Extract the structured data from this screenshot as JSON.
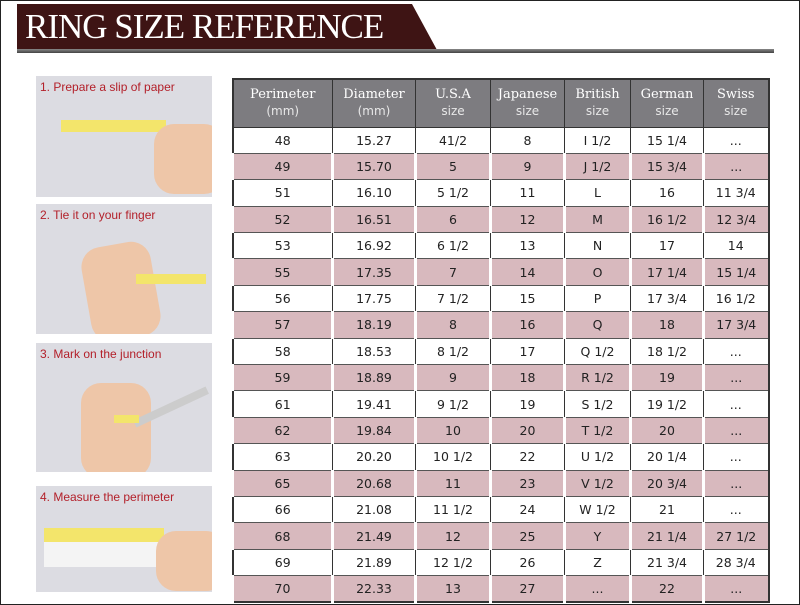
{
  "title": "RING SIZE REFERENCE",
  "steps": [
    {
      "label": "1. Prepare a slip of paper"
    },
    {
      "label": "2. Tie it on your finger"
    },
    {
      "label": "3. Mark on the junction"
    },
    {
      "label": "4. Measure the perimeter"
    }
  ],
  "colors": {
    "banner": "#3e1414",
    "header": "#7d7c80",
    "alt_row": "#d8b9be",
    "step_text": "#b3202a"
  },
  "table": {
    "headers": [
      {
        "title": "Perimeter",
        "sub": "(mm)"
      },
      {
        "title": "Diameter",
        "sub": "(mm)"
      },
      {
        "title": "U.S.A",
        "sub": "size"
      },
      {
        "title": "Japanese",
        "sub": "size"
      },
      {
        "title": "British",
        "sub": "size"
      },
      {
        "title": "German",
        "sub": "size"
      },
      {
        "title": "Swiss",
        "sub": "size"
      }
    ],
    "rows": [
      [
        "48",
        "15.27",
        "41/2",
        "8",
        "I 1/2",
        "15 1/4",
        "..."
      ],
      [
        "49",
        "15.70",
        "5",
        "9",
        "J 1/2",
        "15 3/4",
        "..."
      ],
      [
        "51",
        "16.10",
        "5 1/2",
        "11",
        "L",
        "16",
        "11 3/4"
      ],
      [
        "52",
        "16.51",
        "6",
        "12",
        "M",
        "16 1/2",
        "12 3/4"
      ],
      [
        "53",
        "16.92",
        "6 1/2",
        "13",
        "N",
        "17",
        "14"
      ],
      [
        "55",
        "17.35",
        "7",
        "14",
        "O",
        "17 1/4",
        "15 1/4"
      ],
      [
        "56",
        "17.75",
        "7 1/2",
        "15",
        "P",
        "17 3/4",
        "16 1/2"
      ],
      [
        "57",
        "18.19",
        "8",
        "16",
        "Q",
        "18",
        "17 3/4"
      ],
      [
        "58",
        "18.53",
        "8 1/2",
        "17",
        "Q  1/2",
        "18 1/2",
        "..."
      ],
      [
        "59",
        "18.89",
        "9",
        "18",
        "R 1/2",
        "19",
        "..."
      ],
      [
        "61",
        "19.41",
        "9 1/2",
        "19",
        "S 1/2",
        "19 1/2",
        "..."
      ],
      [
        "62",
        "19.84",
        "10",
        "20",
        "T 1/2",
        "20",
        "..."
      ],
      [
        "63",
        "20.20",
        "10 1/2",
        "22",
        "U 1/2",
        "20 1/4",
        "..."
      ],
      [
        "65",
        "20.68",
        "11",
        "23",
        "V 1/2",
        "20 3/4",
        "..."
      ],
      [
        "66",
        "21.08",
        "11 1/2",
        "24",
        "W 1/2",
        "21",
        "..."
      ],
      [
        "68",
        "21.49",
        "12",
        "25",
        "Y",
        "21 1/4",
        "27 1/2"
      ],
      [
        "69",
        "21.89",
        "12 1/2",
        "26",
        "Z",
        "21 3/4",
        "28 3/4"
      ],
      [
        "70",
        "22.33",
        "13",
        "27",
        "...",
        "22",
        "..."
      ]
    ]
  }
}
